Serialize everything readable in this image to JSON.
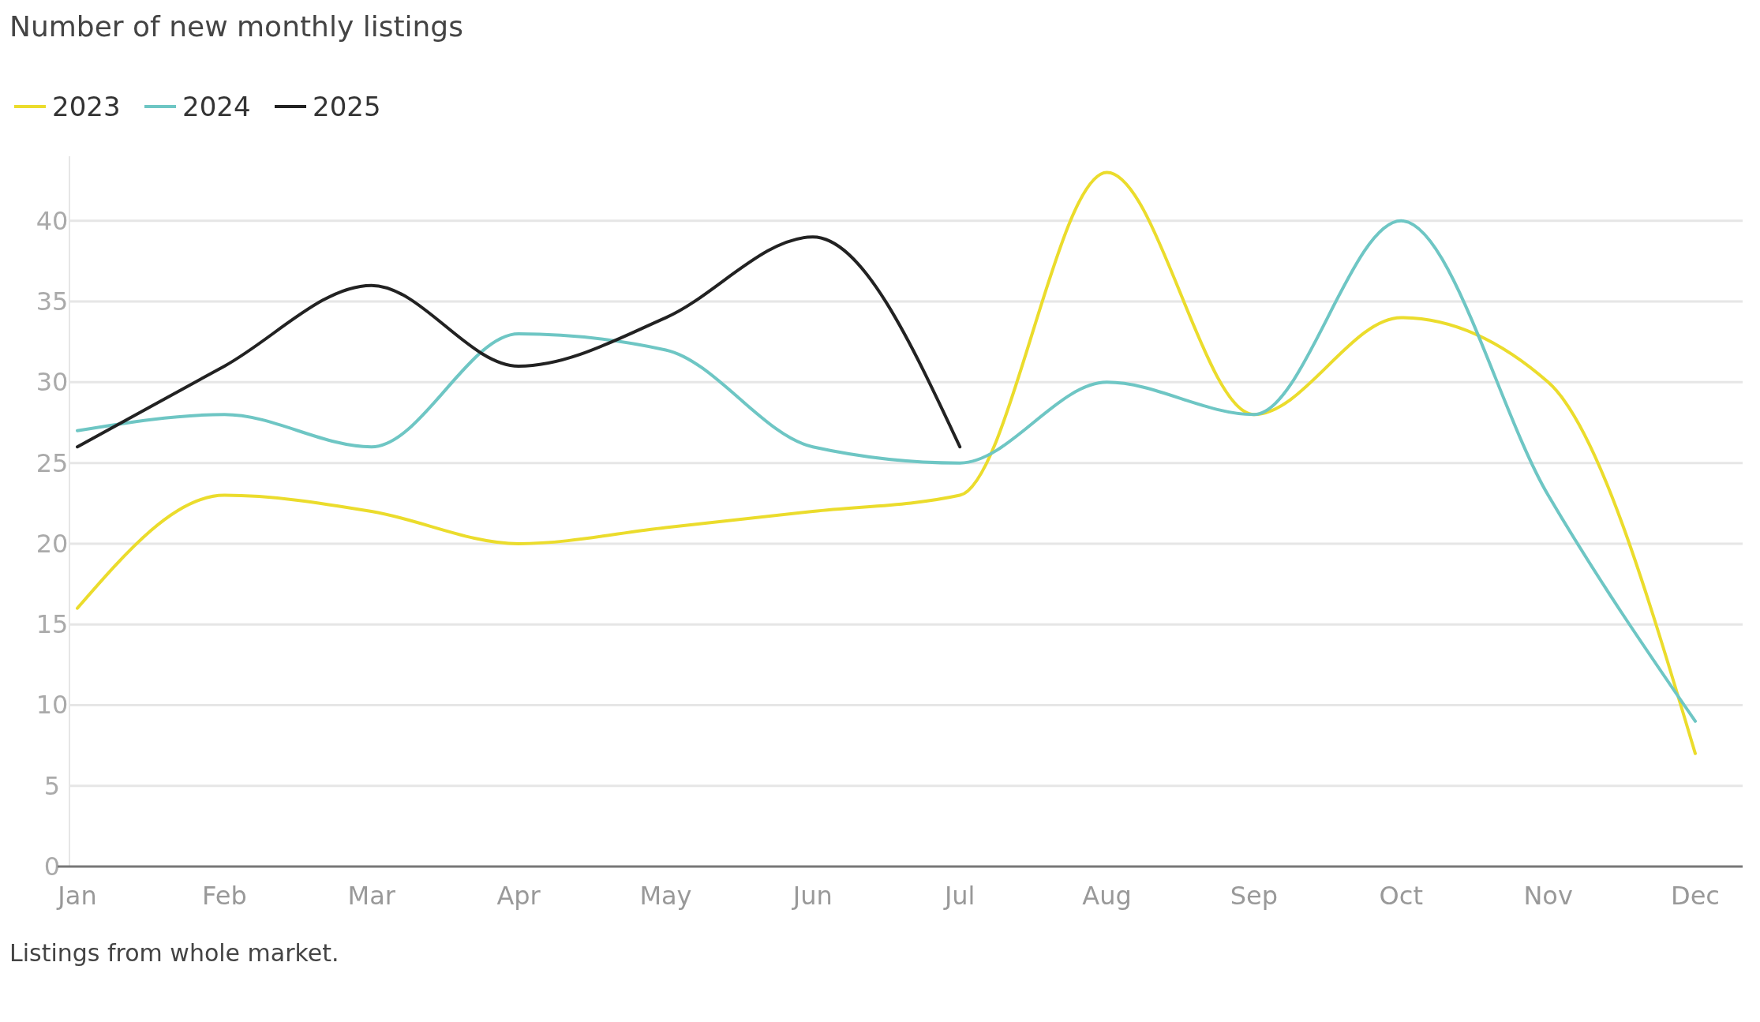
{
  "chart_data": {
    "type": "line",
    "title": "Number of new monthly listings",
    "categories": [
      "Jan",
      "Feb",
      "Mar",
      "Apr",
      "May",
      "Jun",
      "Jul",
      "Aug",
      "Sep",
      "Oct",
      "Nov",
      "Dec"
    ],
    "series": [
      {
        "name": "2023",
        "color": "#ebdc2c",
        "values": [
          16,
          23,
          22,
          20,
          21,
          22,
          23,
          43,
          28,
          34,
          30,
          7
        ]
      },
      {
        "name": "2024",
        "color": "#6ec6c4",
        "values": [
          27,
          28,
          26,
          33,
          32,
          26,
          25,
          30,
          28,
          40,
          23,
          9
        ]
      },
      {
        "name": "2025",
        "color": "#222222",
        "values": [
          26,
          31,
          36,
          31,
          34,
          39,
          26,
          null,
          null,
          null,
          null,
          null
        ]
      }
    ],
    "ylim": [
      0,
      44
    ],
    "yticks": [
      0,
      5,
      10,
      15,
      20,
      25,
      30,
      35,
      40
    ],
    "grid": "y",
    "legend": "top left",
    "marker": "none",
    "line_style": "solid",
    "annotations": [
      "Listings from whole market."
    ]
  }
}
